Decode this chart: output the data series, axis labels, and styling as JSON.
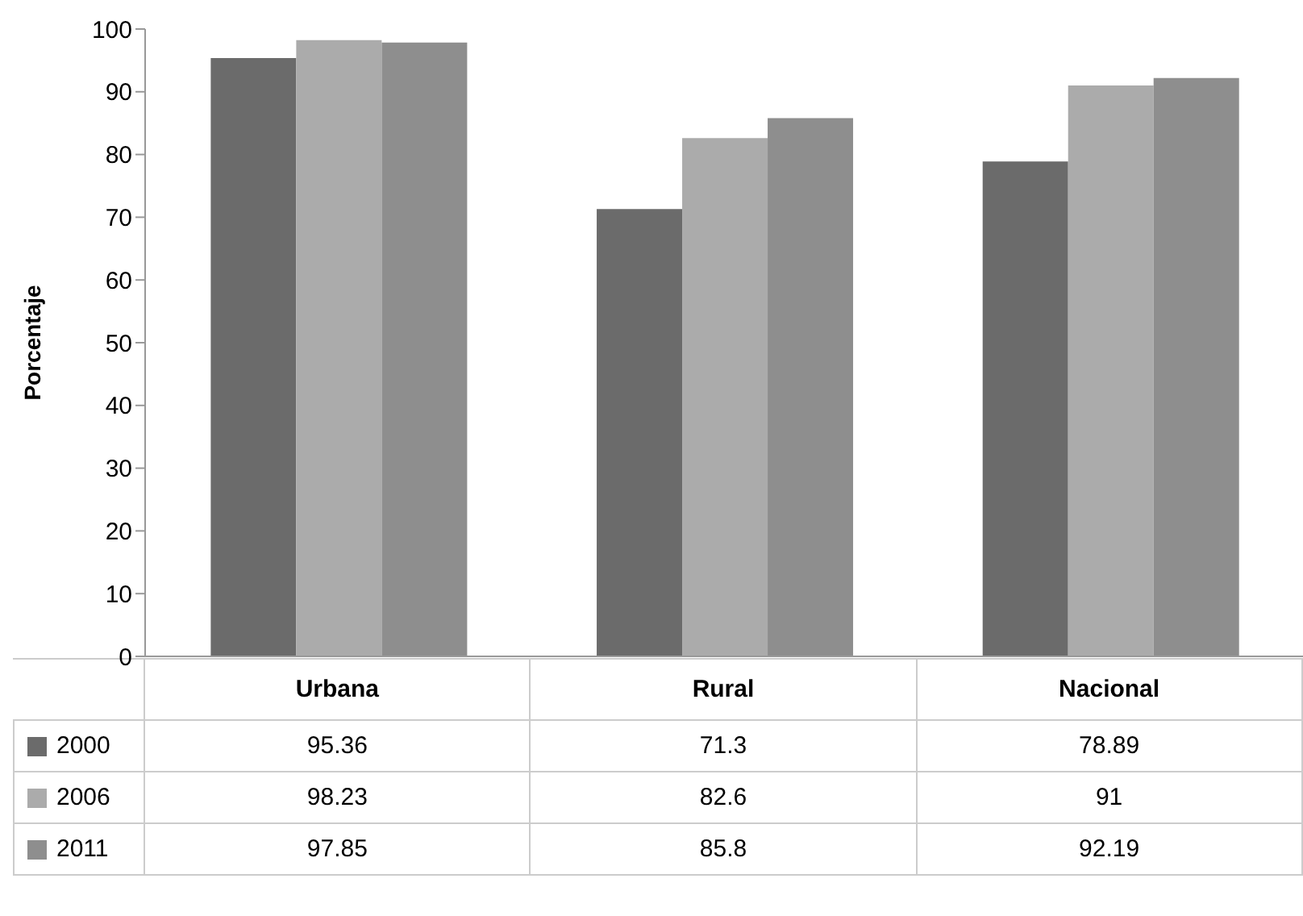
{
  "chart_data": {
    "type": "bar",
    "ylabel": "Porcentaje",
    "categories": [
      "Urbana",
      "Rural",
      "Nacional"
    ],
    "series": [
      {
        "name": "2000",
        "color": "#6b6b6b",
        "values": [
          95.36,
          71.3,
          78.89
        ]
      },
      {
        "name": "2006",
        "color": "#ababab",
        "values": [
          98.23,
          82.6,
          91
        ]
      },
      {
        "name": "2011",
        "color": "#8e8e8e",
        "values": [
          97.85,
          85.8,
          92.19
        ]
      }
    ],
    "ylim": [
      0,
      100
    ],
    "yticks": [
      0,
      10,
      20,
      30,
      40,
      50,
      60,
      70,
      80,
      90,
      100
    ],
    "grid": false,
    "legend": "bottom left",
    "data_labels": true
  }
}
